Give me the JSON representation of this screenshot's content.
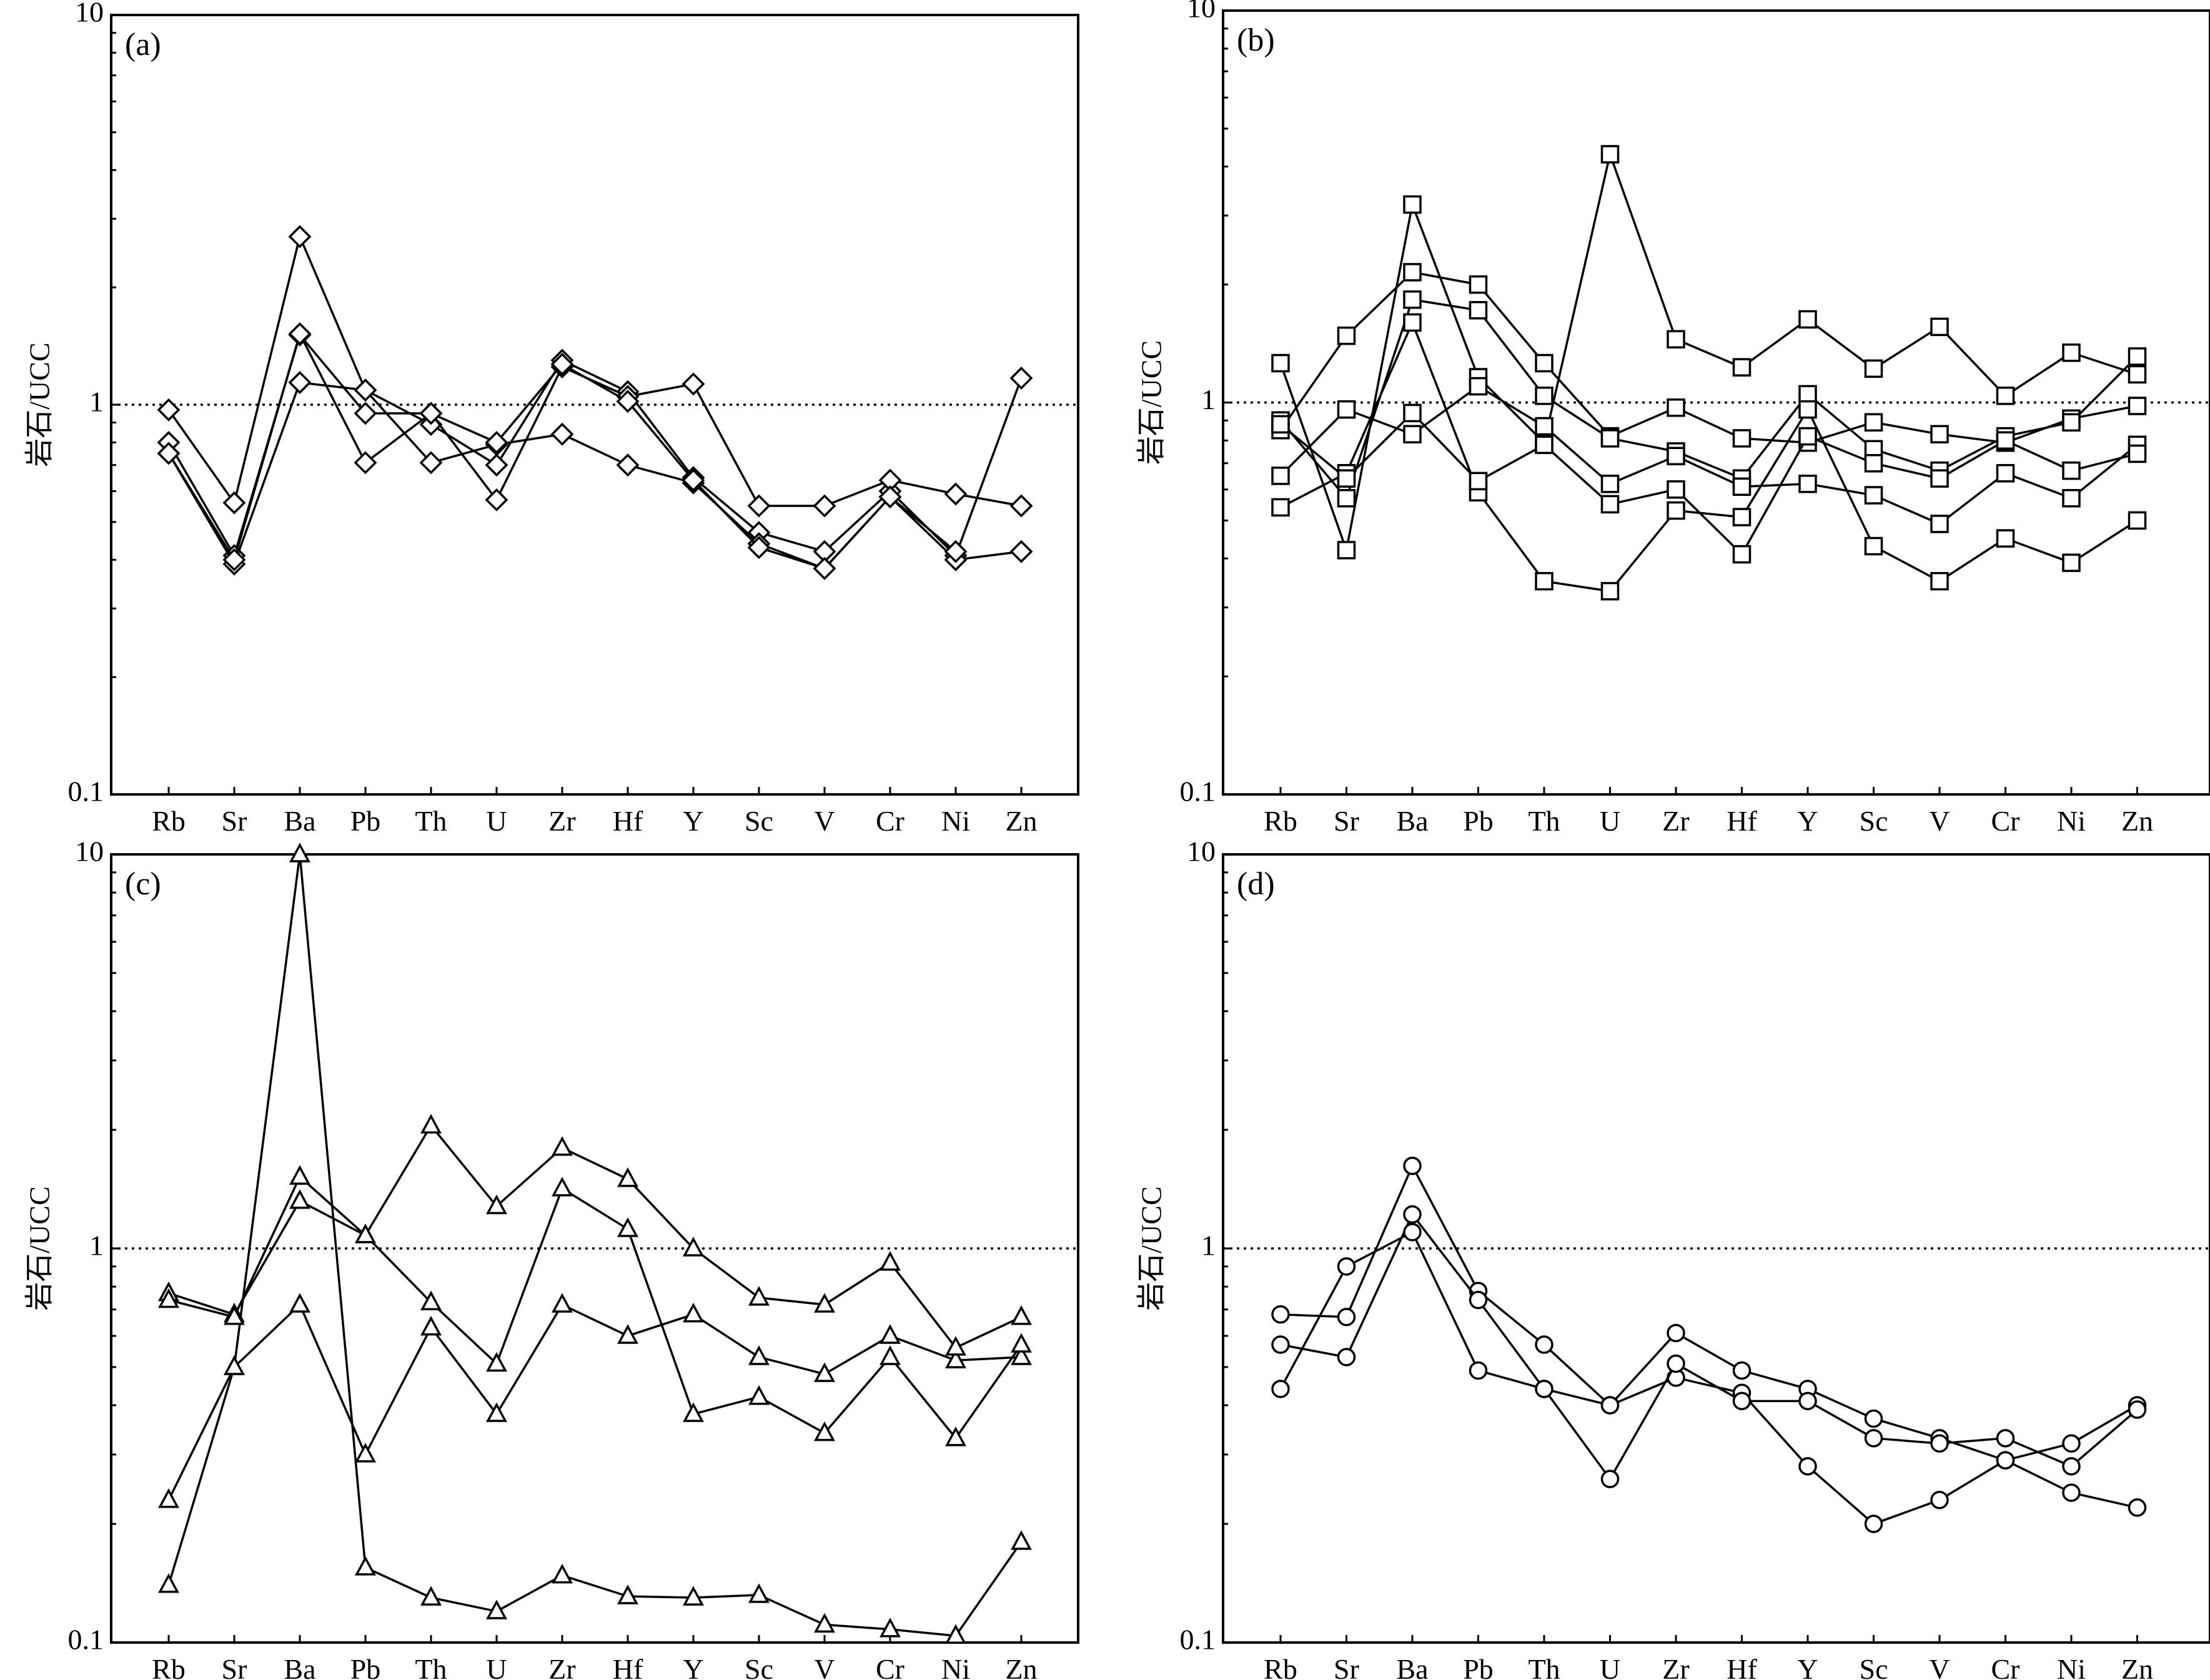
{
  "figure": {
    "ylabel": "岩石/UCC"
  },
  "chart_data": [
    {
      "type": "line",
      "panel_label": "(a)",
      "marker": "diamond",
      "yscale": "log",
      "ylim": [
        0.1,
        10
      ],
      "yticks": [
        "0.1",
        "1",
        "10"
      ],
      "ylabel": "岩石/UCC",
      "reference_line": 1,
      "categories": [
        "Rb",
        "Sr",
        "Ba",
        "Pb",
        "Th",
        "U",
        "Zr",
        "Hf",
        "Y",
        "Sc",
        "V",
        "Cr",
        "Ni",
        "Zn"
      ],
      "series": [
        {
          "values": [
            0.97,
            0.56,
            2.7,
            1.09,
            0.89,
            0.7,
            1.3,
            1.08,
            0.65,
            0.47,
            0.42,
            0.6,
            0.41,
            1.17
          ]
        },
        {
          "values": [
            0.8,
            0.41,
            1.51,
            0.95,
            0.95,
            0.57,
            1.25,
            1.05,
            1.13,
            0.55,
            0.55,
            0.64,
            0.59,
            0.55
          ]
        },
        {
          "values": [
            0.75,
            0.39,
            1.14,
            1.09,
            0.71,
            0.79,
            0.84,
            0.7,
            0.63,
            0.44,
            0.38,
            0.58,
            0.4,
            0.42
          ]
        },
        {
          "values": [
            0.75,
            0.4,
            1.52,
            0.71,
            0.95,
            0.8,
            1.27,
            1.02,
            0.64,
            0.43,
            0.38,
            0.58,
            0.42,
            null
          ]
        }
      ]
    },
    {
      "type": "line",
      "panel_label": "(b)",
      "marker": "square",
      "yscale": "log",
      "ylim": [
        0.1,
        10
      ],
      "yticks": [
        "0.1",
        "1",
        "10"
      ],
      "ylabel": "岩石/UCC",
      "reference_line": 1,
      "categories": [
        "Rb",
        "Sr",
        "Ba",
        "Pb",
        "Th",
        "U",
        "Zr",
        "Hf",
        "Y",
        "Sc",
        "V",
        "Cr",
        "Ni",
        "Zn"
      ],
      "series": [
        {
          "values": [
            1.26,
            0.42,
            3.2,
            1.16,
            0.79,
            4.3,
            1.45,
            1.23,
            1.63,
            1.22,
            1.56,
            1.04,
            1.34,
            1.18
          ]
        },
        {
          "values": [
            0.85,
            1.48,
            2.15,
            2.0,
            1.26,
            0.82,
            0.97,
            0.81,
            0.79,
            0.89,
            0.83,
            0.79,
            0.91,
            0.98
          ]
        },
        {
          "values": [
            0.9,
            0.57,
            1.83,
            1.72,
            1.04,
            0.81,
            0.75,
            0.64,
            1.05,
            0.76,
            0.67,
            0.82,
            0.89,
            1.31
          ]
        },
        {
          "values": [
            0.65,
            0.96,
            0.83,
            1.1,
            0.87,
            0.62,
            0.73,
            0.61,
            0.62,
            0.58,
            0.49,
            0.66,
            0.57,
            0.78
          ]
        },
        {
          "values": [
            0.54,
            0.66,
            1.6,
            0.59,
            0.35,
            0.33,
            0.53,
            0.51,
            0.96,
            0.43,
            0.35,
            0.45,
            0.39,
            0.5
          ]
        },
        {
          "values": [
            0.88,
            0.64,
            0.94,
            0.63,
            0.78,
            0.55,
            0.6,
            0.41,
            0.82,
            0.7,
            0.64,
            0.8,
            0.67,
            0.74
          ]
        }
      ]
    },
    {
      "type": "line",
      "panel_label": "(c)",
      "marker": "triangle",
      "yscale": "log",
      "ylim": [
        0.1,
        10
      ],
      "yticks": [
        "0.1",
        "1",
        "10"
      ],
      "ylabel": "岩石/UCC",
      "reference_line": 1,
      "categories": [
        "Rb",
        "Sr",
        "Ba",
        "Pb",
        "Th",
        "U",
        "Zr",
        "Hf",
        "Y",
        "Sc",
        "V",
        "Cr",
        "Ni",
        "Zn"
      ],
      "series": [
        {
          "values": [
            0.14,
            0.5,
            10,
            0.155,
            0.13,
            0.12,
            0.148,
            0.131,
            0.13,
            0.132,
            0.111,
            0.108,
            0.104,
            0.18
          ]
        },
        {
          "values": [
            0.23,
            0.5,
            0.72,
            0.3,
            0.63,
            0.38,
            0.72,
            0.6,
            0.68,
            0.53,
            0.48,
            0.6,
            0.52,
            0.53
          ]
        },
        {
          "values": [
            0.77,
            0.68,
            1.32,
            1.08,
            2.05,
            1.28,
            1.8,
            1.5,
            1.0,
            0.75,
            0.72,
            0.92,
            0.56,
            0.67
          ]
        },
        {
          "values": [
            0.74,
            0.67,
            1.52,
            1.08,
            0.73,
            0.51,
            1.42,
            1.12,
            0.38,
            0.42,
            0.34,
            0.53,
            0.33,
            0.57
          ]
        }
      ]
    },
    {
      "type": "line",
      "panel_label": "(d)",
      "marker": "circle",
      "yscale": "log",
      "ylim": [
        0.1,
        10
      ],
      "yticks": [
        "0.1",
        "1",
        "10"
      ],
      "ylabel": "岩石/UCC",
      "reference_line": 1,
      "categories": [
        "Rb",
        "Sr",
        "Ba",
        "Pb",
        "Th",
        "U",
        "Zr",
        "Hf",
        "Y",
        "Sc",
        "V",
        "Cr",
        "Ni",
        "Zn"
      ],
      "series": [
        {
          "values": [
            0.68,
            0.67,
            1.62,
            0.78,
            0.57,
            0.4,
            0.61,
            0.49,
            0.44,
            0.37,
            0.33,
            0.29,
            0.32,
            0.4
          ]
        },
        {
          "values": [
            0.57,
            0.53,
            1.22,
            0.74,
            0.44,
            0.4,
            0.47,
            0.43,
            0.28,
            0.2,
            0.23,
            0.29,
            0.24,
            0.22
          ]
        },
        {
          "values": [
            0.44,
            0.9,
            1.1,
            0.49,
            0.44,
            0.26,
            0.51,
            0.41,
            0.41,
            0.33,
            0.32,
            0.33,
            0.28,
            0.39
          ]
        }
      ]
    }
  ]
}
